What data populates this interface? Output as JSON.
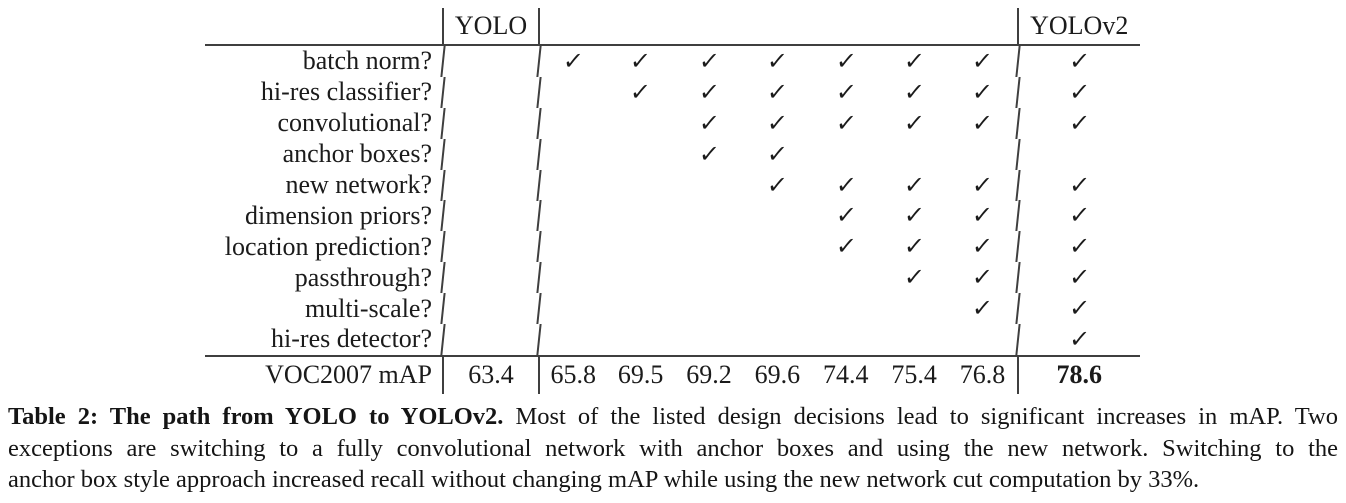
{
  "table": {
    "header": {
      "yolo": "YOLO",
      "yolov2": "YOLOv2"
    },
    "check_glyph": "✓",
    "rows": [
      {
        "label": "batch norm?",
        "checks": [
          false,
          true,
          true,
          true,
          true,
          true,
          true,
          true,
          true
        ]
      },
      {
        "label": "hi-res classifier?",
        "checks": [
          false,
          false,
          true,
          true,
          true,
          true,
          true,
          true,
          true
        ]
      },
      {
        "label": "convolutional?",
        "checks": [
          false,
          false,
          false,
          true,
          true,
          true,
          true,
          true,
          true
        ]
      },
      {
        "label": "anchor boxes?",
        "checks": [
          false,
          false,
          false,
          true,
          true,
          false,
          false,
          false,
          false
        ]
      },
      {
        "label": "new network?",
        "checks": [
          false,
          false,
          false,
          false,
          true,
          true,
          true,
          true,
          true
        ]
      },
      {
        "label": "dimension priors?",
        "checks": [
          false,
          false,
          false,
          false,
          false,
          true,
          true,
          true,
          true
        ]
      },
      {
        "label": "location prediction?",
        "checks": [
          false,
          false,
          false,
          false,
          false,
          true,
          true,
          true,
          true
        ]
      },
      {
        "label": "passthrough?",
        "checks": [
          false,
          false,
          false,
          false,
          false,
          false,
          true,
          true,
          true
        ]
      },
      {
        "label": "multi-scale?",
        "checks": [
          false,
          false,
          false,
          false,
          false,
          false,
          false,
          true,
          true
        ]
      },
      {
        "label": "hi-res detector?",
        "checks": [
          false,
          false,
          false,
          false,
          false,
          false,
          false,
          false,
          true
        ]
      }
    ],
    "map_row": {
      "label": "VOC2007 mAP",
      "values": [
        "63.4",
        "65.8",
        "69.5",
        "69.2",
        "69.6",
        "74.4",
        "75.4",
        "76.8",
        "78.6"
      ]
    }
  },
  "caption": {
    "title_bold": "Table 2: The path from YOLO to YOLOv2.",
    "line1_rest": "Most of the listed design decisions lead to significant increases in mAP. Two",
    "line2": "exceptions are switching to a fully convolutional network with anchor boxes and using the new network. Switching to the",
    "line3": "anchor box style approach increased recall without changing mAP while using the new network cut computation by 33%."
  },
  "colors": {
    "background": "#ffffff",
    "text": "#1b1b1b",
    "rule": "#3f3f3f"
  },
  "chart_data": {
    "type": "table",
    "title": "The path from YOLO to YOLOv2",
    "columns": [
      "YOLO",
      "",
      "",
      "",
      "",
      "",
      "",
      "",
      "YOLOv2"
    ],
    "row_labels": [
      "batch norm?",
      "hi-res classifier?",
      "convolutional?",
      "anchor boxes?",
      "new network?",
      "dimension priors?",
      "location prediction?",
      "passthrough?",
      "multi-scale?",
      "hi-res detector?"
    ],
    "check_matrix": [
      [
        0,
        1,
        1,
        1,
        1,
        1,
        1,
        1,
        1
      ],
      [
        0,
        0,
        1,
        1,
        1,
        1,
        1,
        1,
        1
      ],
      [
        0,
        0,
        0,
        1,
        1,
        1,
        1,
        1,
        1
      ],
      [
        0,
        0,
        0,
        1,
        1,
        0,
        0,
        0,
        0
      ],
      [
        0,
        0,
        0,
        0,
        1,
        1,
        1,
        1,
        1
      ],
      [
        0,
        0,
        0,
        0,
        0,
        1,
        1,
        1,
        1
      ],
      [
        0,
        0,
        0,
        0,
        0,
        1,
        1,
        1,
        1
      ],
      [
        0,
        0,
        0,
        0,
        0,
        0,
        1,
        1,
        1
      ],
      [
        0,
        0,
        0,
        0,
        0,
        0,
        0,
        1,
        1
      ],
      [
        0,
        0,
        0,
        0,
        0,
        0,
        0,
        0,
        1
      ]
    ],
    "metric_label": "VOC2007 mAP",
    "metric_values": [
      63.4,
      65.8,
      69.5,
      69.2,
      69.6,
      74.4,
      75.4,
      76.8,
      78.6
    ]
  }
}
